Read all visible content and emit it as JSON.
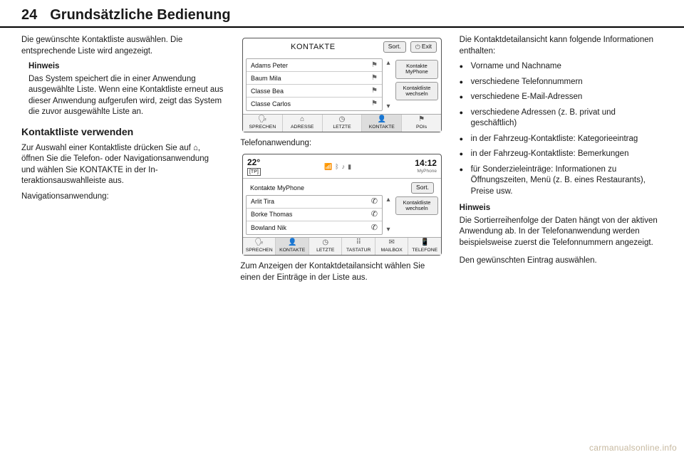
{
  "header": {
    "page_num": "24",
    "title": "Grundsätzliche Bedienung"
  },
  "col1": {
    "p1": "Die gewünschte Kontaktliste auswäh­len. Die entsprechende Liste wird an­gezeigt.",
    "note_title": "Hinweis",
    "note_body": "Das System speichert die in einer Anwendung ausgewählte Liste. Wenn eine Kontaktliste erneut aus dieser Anwendung aufgerufen wird, zeigt das System die zuvor ausge­wählte Liste an.",
    "h2": "Kontaktliste verwenden",
    "p2": "Zur Auswahl einer Kontaktliste drücken Sie auf ⌂, öffnen Sie die Te­lefon- oder Navigationsanwendung und wählen Sie KONTAKTE in der In­teraktionsauswahlleiste aus.",
    "p3": "Navigationsanwendung:"
  },
  "col2": {
    "p1": "Telefonanwendung:",
    "p2": "Zum Anzeigen der Kontaktdetailan­sicht wählen Sie einen der Einträge in der Liste aus."
  },
  "col3": {
    "lead": "Die Kontaktdetailansicht kann fol­gende Informationen enthalten:",
    "items": [
      "Vorname und Nachname",
      "verschiedene Telefonnummern",
      "verschiedene E-Mail-Adressen",
      "verschiedene Adressen (z. B. pri­vat und geschäftlich)",
      "in der Fahrzeug-Kontaktliste: Ka­tegorieeintrag",
      "in der Fahrzeug-Kontaktliste: Be­merkungen",
      "für Sonderzieleinträge: Informati­onen zu Öffnungszeiten, Menü (z. B. eines Restaurants), Preise usw."
    ],
    "note_title": "Hinweis",
    "note_body": "Die Sortierreihenfolge der Daten hängt von der aktiven Anwendung ab. In der Telefonanwendung wer­den beispielsweise zuerst die Tele­fonnummern angezeigt.",
    "p_end": "Den gewünschten Eintrag auswäh­len."
  },
  "nav_shot": {
    "title": "KONTAKTE",
    "sort": "Sort.",
    "exit": "Exit",
    "rows": [
      "Adams Peter",
      "Baum Mila",
      "Classe Bea",
      "Classe Carlos"
    ],
    "side1": "Kontakte MyPhone",
    "side2": "Kontaktliste wechseln",
    "nav": [
      "SPRECHEN",
      "ADRESSE",
      "LETZTE",
      "KONTAKTE",
      "POIs"
    ],
    "nav_active": 3
  },
  "phone_shot": {
    "temp": "22°",
    "tp": "[TP]",
    "clock": "14:12",
    "device": "MyPhone",
    "title": "Kontakte MyPhone",
    "sort": "Sort.",
    "rows": [
      "Arlit Tira",
      "Borke Thomas",
      "Bowland Nik"
    ],
    "side1": "Kontaktliste wechseln",
    "nav": [
      "SPRECHEN",
      "KONTAKTE",
      "LETZTE",
      "TASTATUR",
      "MAILBOX",
      "TELEFONE"
    ],
    "nav_active": 1
  },
  "watermark": "carmanualsonline.info"
}
